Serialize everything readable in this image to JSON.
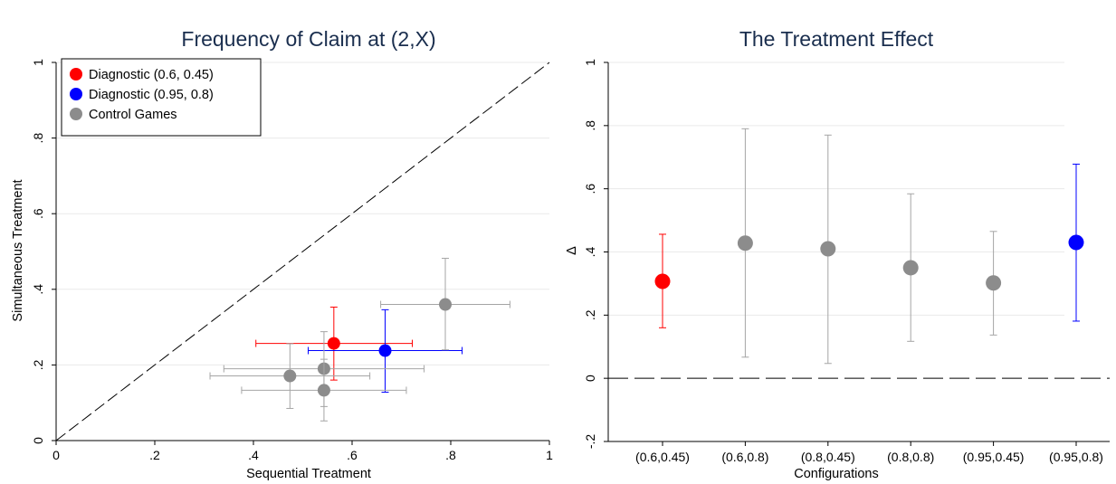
{
  "colors": {
    "diag1": "#ff0000",
    "diag2": "#0000ff",
    "control": "#8c8c8c",
    "control_bar": "#a5a5a5",
    "title": "#1a2e4e",
    "grid": "#eaeaea"
  },
  "chart_data": [
    {
      "type": "scatter",
      "title": "Frequency of Claim at (2,X)",
      "xlabel": "Sequential Treatment",
      "ylabel": "Simultaneous Treatment",
      "xlim": [
        0,
        1
      ],
      "ylim": [
        0,
        1
      ],
      "x_ticks": [
        0,
        0.2,
        0.4,
        0.6,
        0.8,
        1
      ],
      "x_tick_labels": [
        "0",
        ".2",
        ".4",
        ".6",
        ".8",
        "1"
      ],
      "y_ticks": [
        0,
        0.2,
        0.4,
        0.6,
        0.8,
        1
      ],
      "y_tick_labels": [
        "0",
        ".2",
        ".4",
        ".6",
        ".8",
        "1"
      ],
      "grid": "horizontal",
      "reference_line": "45-degree dashed",
      "legend_position": "top-left",
      "series": [
        {
          "name": "Diagnostic (0.6, 0.45)",
          "color_key": "diag1",
          "points": [
            {
              "x": 0.563,
              "y": 0.257,
              "x_err": [
                0.405,
                0.722
              ],
              "y_err": [
                0.16,
                0.353
              ]
            }
          ]
        },
        {
          "name": "Diagnostic (0.95, 0.8)",
          "color_key": "diag2",
          "points": [
            {
              "x": 0.667,
              "y": 0.238,
              "x_err": [
                0.511,
                0.823
              ],
              "y_err": [
                0.128,
                0.346
              ]
            }
          ]
        },
        {
          "name": "Control Games",
          "color_key": "control",
          "points": [
            {
              "x": 0.789,
              "y": 0.36,
              "x_err": [
                0.658,
                0.92
              ],
              "y_err": [
                0.24,
                0.482
              ]
            },
            {
              "x": 0.474,
              "y": 0.171,
              "x_err": [
                0.312,
                0.636
              ],
              "y_err": [
                0.085,
                0.256
              ]
            },
            {
              "x": 0.543,
              "y": 0.19,
              "x_err": [
                0.34,
                0.746
              ],
              "y_err": [
                0.09,
                0.288
              ]
            },
            {
              "x": 0.543,
              "y": 0.133,
              "x_err": [
                0.376,
                0.71
              ],
              "y_err": [
                0.052,
                0.215
              ]
            }
          ]
        }
      ]
    },
    {
      "type": "scatter",
      "title": "The Treatment Effect",
      "xlabel": "Configurations",
      "ylabel": "Δ",
      "ylim": [
        -0.2,
        1
      ],
      "y_ticks": [
        -0.2,
        0,
        0.2,
        0.4,
        0.6,
        0.8,
        1
      ],
      "y_tick_labels": [
        "-.2",
        "0",
        ".2",
        ".4",
        ".6",
        ".8",
        "1"
      ],
      "grid": "horizontal",
      "reference_line": "dashed at 0",
      "categories": [
        "(0.6,0.45)",
        "(0.6,0.8)",
        "(0.8,0.45)",
        "(0.8,0.8)",
        "(0.95,0.45)",
        "(0.95,0.8)"
      ],
      "values": [
        0.307,
        0.428,
        0.41,
        0.35,
        0.302,
        0.43
      ],
      "ci_low": [
        0.16,
        0.067,
        0.047,
        0.117,
        0.137,
        0.181
      ],
      "ci_high": [
        0.456,
        0.79,
        0.77,
        0.584,
        0.465,
        0.678
      ],
      "point_colors": [
        "diag1",
        "control",
        "control",
        "control",
        "control",
        "diag2"
      ]
    }
  ]
}
